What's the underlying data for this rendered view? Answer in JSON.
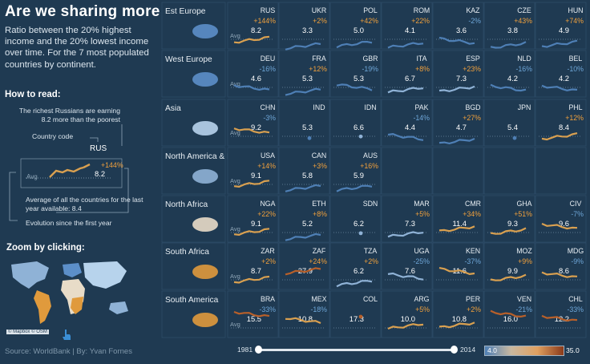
{
  "title": "Are we sharing more ?",
  "description": "Ratio between the 20% highest income and the 20% lowest income  over time. For the 7 most populated countries by continent.",
  "how_to_read": {
    "heading": "How to read:",
    "note1": "The richest Russians are earning 8.2 more than the poorest",
    "note2": "Country code",
    "example_code": "RUS",
    "example_pct": "+144%",
    "example_val": "8.2",
    "example_avg": "Avg",
    "note3": "Average of all the countries for the last year available: 8.4",
    "note4": "Evolution since the first year"
  },
  "zoom": {
    "heading": "Zoom by clicking:",
    "credit": "© Mapbox © OSM"
  },
  "source": "Source: WorldBank | By: Yvan Fornes",
  "slider": {
    "start": "1981",
    "end": "2014"
  },
  "colorbar": {
    "min": "4.0",
    "max": "35.0",
    "colors": [
      "#4e7fb5",
      "#c9b8a0",
      "#e0a060",
      "#8a3a1a"
    ]
  },
  "avg_label": "Avg",
  "regions": [
    {
      "name": "Est Europe",
      "countries": [
        {
          "code": "RUS",
          "pct": "+144%",
          "val": "8.2",
          "trend": "up"
        },
        {
          "code": "UKR",
          "pct": "+2%",
          "val": "3.3",
          "trend": "up"
        },
        {
          "code": "POL",
          "pct": "+42%",
          "val": "5.0",
          "trend": "up"
        },
        {
          "code": "ROM",
          "pct": "+22%",
          "val": "4.1",
          "trend": "up"
        },
        {
          "code": "KAZ",
          "pct": "-2%",
          "val": "3.6",
          "trend": "dn"
        },
        {
          "code": "CZE",
          "pct": "+43%",
          "val": "3.8",
          "trend": "up"
        },
        {
          "code": "HUN",
          "pct": "+74%",
          "val": "4.9",
          "trend": "up"
        }
      ]
    },
    {
      "name": "West Europe",
      "countries": [
        {
          "code": "DEU",
          "pct": "-16%",
          "val": "4.6",
          "trend": "dn"
        },
        {
          "code": "FRA",
          "pct": "+12%",
          "val": "5.3",
          "trend": "up"
        },
        {
          "code": "GBR",
          "pct": "-19%",
          "val": "5.3",
          "trend": "dn"
        },
        {
          "code": "ITA",
          "pct": "+8%",
          "val": "6.7",
          "trend": "up"
        },
        {
          "code": "ESP",
          "pct": "+23%",
          "val": "7.3",
          "trend": "up"
        },
        {
          "code": "NLD",
          "pct": "-16%",
          "val": "4.2",
          "trend": "dn"
        },
        {
          "code": "BEL",
          "pct": "-10%",
          "val": "4.2",
          "trend": "dn"
        }
      ]
    },
    {
      "name": "Asia",
      "countries": [
        {
          "code": "CHN",
          "pct": "-3%",
          "val": "9.2",
          "trend": "dn"
        },
        {
          "code": "IND",
          "pct": "",
          "val": "5.3",
          "trend": "none"
        },
        {
          "code": "IDN",
          "pct": "",
          "val": "6.6",
          "trend": "none"
        },
        {
          "code": "PAK",
          "pct": "-14%",
          "val": "4.4",
          "trend": "dn"
        },
        {
          "code": "BGD",
          "pct": "+27%",
          "val": "4.7",
          "trend": "up"
        },
        {
          "code": "JPN",
          "pct": "",
          "val": "5.4",
          "trend": "none"
        },
        {
          "code": "PHL",
          "pct": "+12%",
          "val": "8.4",
          "trend": "up"
        }
      ]
    },
    {
      "name": "North America & Pacific",
      "countries": [
        {
          "code": "USA",
          "pct": "+14%",
          "val": "9.1",
          "trend": "up"
        },
        {
          "code": "CAN",
          "pct": "+3%",
          "val": "5.8",
          "trend": "up"
        },
        {
          "code": "AUS",
          "pct": "+16%",
          "val": "5.9",
          "trend": "up"
        }
      ]
    },
    {
      "name": "North Africa",
      "countries": [
        {
          "code": "NGA",
          "pct": "+22%",
          "val": "9.1",
          "trend": "up"
        },
        {
          "code": "ETH",
          "pct": "+8%",
          "val": "5.2",
          "trend": "up"
        },
        {
          "code": "SDN",
          "pct": "",
          "val": "6.2",
          "trend": "none"
        },
        {
          "code": "MAR",
          "pct": "+5%",
          "val": "7.3",
          "trend": "up"
        },
        {
          "code": "CMR",
          "pct": "+34%",
          "val": "11.4",
          "trend": "up"
        },
        {
          "code": "GHA",
          "pct": "+51%",
          "val": "9.3",
          "trend": "up"
        },
        {
          "code": "CIV",
          "pct": "-7%",
          "val": "9.6",
          "trend": "dn"
        }
      ]
    },
    {
      "name": "South Africa",
      "countries": [
        {
          "code": "ZAR",
          "pct": "+2%",
          "val": "8.7",
          "trend": "up"
        },
        {
          "code": "ZAF",
          "pct": "+24%",
          "val": "27.9",
          "trend": "up"
        },
        {
          "code": "TZA",
          "pct": "+2%",
          "val": "6.2",
          "trend": "up"
        },
        {
          "code": "UGA",
          "pct": "-25%",
          "val": "7.6",
          "trend": "dn"
        },
        {
          "code": "KEN",
          "pct": "-37%",
          "val": "11.6",
          "trend": "dn"
        },
        {
          "code": "MOZ",
          "pct": "+9%",
          "val": "9.9",
          "trend": "up"
        },
        {
          "code": "MDG",
          "pct": "-9%",
          "val": "8.6",
          "trend": "dn"
        }
      ]
    },
    {
      "name": "South America",
      "countries": [
        {
          "code": "BRA",
          "pct": "-33%",
          "val": "15.5",
          "trend": "dn"
        },
        {
          "code": "MEX",
          "pct": "-18%",
          "val": "10.8",
          "trend": "dn"
        },
        {
          "code": "COL",
          "pct": "",
          "val": "17.3",
          "trend": "none"
        },
        {
          "code": "ARG",
          "pct": "+5%",
          "val": "10.0",
          "trend": "up"
        },
        {
          "code": "PER",
          "pct": "+2%",
          "val": "10.8",
          "trend": "up"
        },
        {
          "code": "VEN",
          "pct": "-21%",
          "val": "16.0",
          "trend": "dn"
        },
        {
          "code": "CHL",
          "pct": "-33%",
          "val": "12.2",
          "trend": "dn"
        }
      ]
    }
  ]
}
